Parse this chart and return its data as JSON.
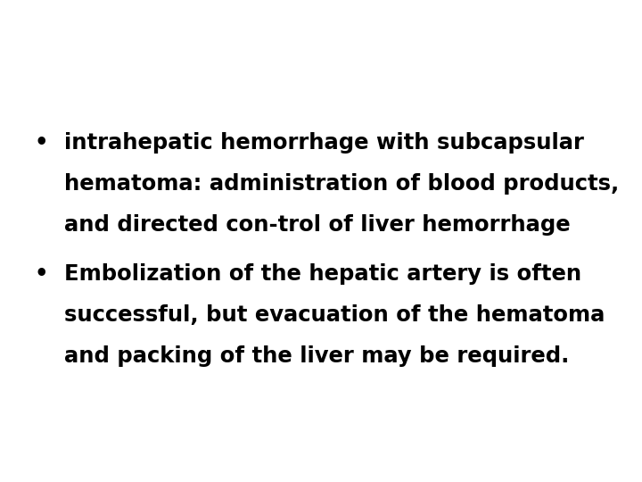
{
  "background_color": "#ffffff",
  "text_color": "#000000",
  "bullet1_line1": " intrahepatic hemorrhage with subcapsular",
  "bullet1_line2": "hematoma: administration of blood products,",
  "bullet1_line3": "and directed con-trol of liver hemorrhage",
  "bullet2_line1": " Embolization of the hepatic artery is often",
  "bullet2_line2": "successful, but evacuation of the hematoma",
  "bullet2_line3": "and packing of the liver may be required.",
  "font_size": 17.5,
  "font_family": "DejaVu Sans",
  "bullet_symbol": "•",
  "fig_width": 7.2,
  "fig_height": 5.4,
  "dpi": 100
}
